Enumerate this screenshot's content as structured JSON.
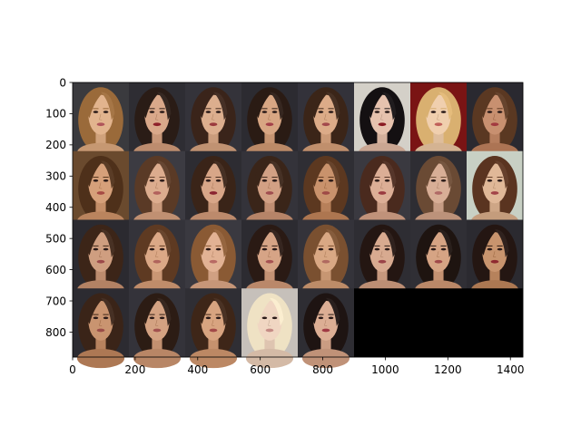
{
  "chart_data": {
    "type": "image-grid",
    "title": "",
    "xlabel": "",
    "ylabel": "",
    "xlim": [
      0,
      1440
    ],
    "ylim": [
      880,
      0
    ],
    "x_ticks": [
      0,
      200,
      400,
      600,
      800,
      1000,
      1200,
      1400
    ],
    "y_ticks": [
      0,
      100,
      200,
      300,
      400,
      500,
      600,
      700,
      800
    ],
    "grid": false,
    "legend": "none",
    "layout": {
      "rows": 4,
      "cols": 8,
      "tile_width": 180,
      "tile_height": 220
    },
    "tiles": [
      {
        "row": 0,
        "col": 0,
        "bg": "#3a3a3e",
        "hair": "#9a6a3a",
        "skin": "#e2b48e",
        "lips": "#b0555a"
      },
      {
        "row": 0,
        "col": 1,
        "bg": "#2e2d33",
        "hair": "#2a1c16",
        "skin": "#d9a88a",
        "lips": "#8e1f2a"
      },
      {
        "row": 0,
        "col": 2,
        "bg": "#34333a",
        "hair": "#3a241a",
        "skin": "#dcae8e",
        "lips": "#9a3a3e"
      },
      {
        "row": 0,
        "col": 3,
        "bg": "#2c2b31",
        "hair": "#2a1b14",
        "skin": "#d8a683",
        "lips": "#a4424a"
      },
      {
        "row": 0,
        "col": 4,
        "bg": "#33323a",
        "hair": "#3b2518",
        "skin": "#dcab88",
        "lips": "#a2484c"
      },
      {
        "row": 0,
        "col": 5,
        "bg": "#d4d0c8",
        "hair": "#141012",
        "skin": "#e6c2ae",
        "lips": "#8a1a22"
      },
      {
        "row": 0,
        "col": 6,
        "bg": "#7a1414",
        "hair": "#d9b070",
        "skin": "#f0cfae",
        "lips": "#c0605a"
      },
      {
        "row": 0,
        "col": 7,
        "bg": "#2a2930",
        "hair": "#5a3822",
        "skin": "#c89070",
        "lips": "#a23a40"
      },
      {
        "row": 1,
        "col": 0,
        "bg": "#6a4a2e",
        "hair": "#4e301a",
        "skin": "#d6a07a",
        "lips": "#a64a44"
      },
      {
        "row": 1,
        "col": 1,
        "bg": "#3c3b42",
        "hair": "#5a3a26",
        "skin": "#dcac8e",
        "lips": "#b2605c"
      },
      {
        "row": 1,
        "col": 2,
        "bg": "#2d2c32",
        "hair": "#3a2418",
        "skin": "#d8a688",
        "lips": "#8a2430"
      },
      {
        "row": 1,
        "col": 3,
        "bg": "#34333a",
        "hair": "#3a2519",
        "skin": "#d2a084",
        "lips": "#a04e50"
      },
      {
        "row": 1,
        "col": 4,
        "bg": "#2f2e34",
        "hair": "#5c3820",
        "skin": "#c9926c",
        "lips": "#9e4a46"
      },
      {
        "row": 1,
        "col": 5,
        "bg": "#3a3940",
        "hair": "#4a2a1e",
        "skin": "#dcae96",
        "lips": "#9a3a40"
      },
      {
        "row": 1,
        "col": 6,
        "bg": "#2e2d33",
        "hair": "#6a4a34",
        "skin": "#d8ae96",
        "lips": "#b06a66"
      },
      {
        "row": 1,
        "col": 7,
        "bg": "#c8d0c4",
        "hair": "#5a3420",
        "skin": "#e0b898",
        "lips": "#a24448"
      },
      {
        "row": 2,
        "col": 0,
        "bg": "#2b2a30",
        "hair": "#3c2518",
        "skin": "#cf9e80",
        "lips": "#9c4a4a"
      },
      {
        "row": 2,
        "col": 1,
        "bg": "#34333a",
        "hair": "#5e3a22",
        "skin": "#dba886",
        "lips": "#b0645c"
      },
      {
        "row": 2,
        "col": 2,
        "bg": "#3a3940",
        "hair": "#8a5a34",
        "skin": "#e2b294",
        "lips": "#b86a64"
      },
      {
        "row": 2,
        "col": 3,
        "bg": "#2c2b31",
        "hair": "#2a1a14",
        "skin": "#d6a486",
        "lips": "#a65252"
      },
      {
        "row": 2,
        "col": 4,
        "bg": "#34333a",
        "hair": "#7a5030",
        "skin": "#d9a884",
        "lips": "#b06a60"
      },
      {
        "row": 2,
        "col": 5,
        "bg": "#2e2d33",
        "hair": "#241612",
        "skin": "#d8aa90",
        "lips": "#9a4448"
      },
      {
        "row": 2,
        "col": 6,
        "bg": "#302f35",
        "hair": "#1e1410",
        "skin": "#d6a484",
        "lips": "#a04a4a"
      },
      {
        "row": 2,
        "col": 7,
        "bg": "#2b2a30",
        "hair": "#241612",
        "skin": "#c8946e",
        "lips": "#8e2a30"
      },
      {
        "row": 3,
        "col": 0,
        "bg": "#2c2b31",
        "hair": "#3a2418",
        "skin": "#c99470",
        "lips": "#9a4c48"
      },
      {
        "row": 3,
        "col": 1,
        "bg": "#34333a",
        "hair": "#2c1c14",
        "skin": "#d4a282",
        "lips": "#a25250"
      },
      {
        "row": 3,
        "col": 2,
        "bg": "#2f2e34",
        "hair": "#3e2618",
        "skin": "#d8a480",
        "lips": "#a24a48"
      },
      {
        "row": 3,
        "col": 3,
        "bg": "#c6c0ba",
        "hair": "#efe2c4",
        "skin": "#f0d6c2",
        "lips": "#c48a84"
      },
      {
        "row": 3,
        "col": 4,
        "bg": "#2e2d33",
        "hair": "#1e1412",
        "skin": "#dcae94",
        "lips": "#a03a44"
      },
      {
        "row": 3,
        "col": 5,
        "bg": "#000000",
        "hair": null,
        "skin": null,
        "lips": null
      },
      {
        "row": 3,
        "col": 6,
        "bg": "#000000",
        "hair": null,
        "skin": null,
        "lips": null
      },
      {
        "row": 3,
        "col": 7,
        "bg": "#000000",
        "hair": null,
        "skin": null,
        "lips": null
      }
    ]
  }
}
